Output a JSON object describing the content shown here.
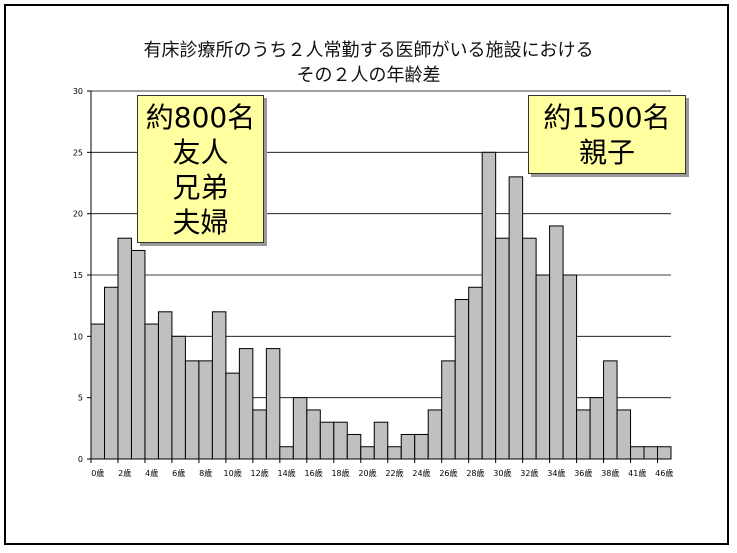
{
  "chart_data": {
    "type": "bar",
    "title": [
      "有床診療所のうち２人常勤する医師がいる施設における",
      "その２人の年齢差"
    ],
    "categories": [
      "0歳",
      "1歳",
      "2歳",
      "3歳",
      "4歳",
      "5歳",
      "6歳",
      "7歳",
      "8歳",
      "9歳",
      "10歳",
      "11歳",
      "12歳",
      "13歳",
      "14歳",
      "15歳",
      "16歳",
      "17歳",
      "18歳",
      "19歳",
      "20歳",
      "21歳",
      "22歳",
      "23歳",
      "24歳",
      "25歳",
      "26歳",
      "27歳",
      "28歳",
      "29歳",
      "30歳",
      "31歳",
      "32歳",
      "33歳",
      "34歳",
      "35歳",
      "36歳",
      "37歳",
      "38歳",
      "39歳",
      "41歳",
      "45歳",
      "46歳"
    ],
    "x_tick_labels": [
      "0歳",
      "2歳",
      "4歳",
      "6歳",
      "8歳",
      "10歳",
      "12歳",
      "14歳",
      "16歳",
      "18歳",
      "20歳",
      "22歳",
      "24歳",
      "26歳",
      "28歳",
      "30歳",
      "32歳",
      "34歳",
      "36歳",
      "38歳",
      "41歳",
      "46歳"
    ],
    "values": [
      11,
      14,
      18,
      17,
      11,
      12,
      10,
      8,
      8,
      12,
      7,
      9,
      4,
      9,
      1,
      5,
      4,
      3,
      3,
      2,
      1,
      3,
      1,
      2,
      2,
      4,
      8,
      13,
      14,
      25,
      18,
      23,
      18,
      15,
      19,
      15,
      4,
      5,
      8,
      4,
      1,
      1,
      1
    ],
    "ylim": [
      0,
      30
    ],
    "y_ticks": [
      0,
      5,
      10,
      15,
      20,
      25,
      30
    ],
    "grid": true,
    "bar_color": "#c0c0c0"
  },
  "annotations": {
    "left": [
      "約800名",
      "友人",
      "兄弟",
      "夫婦"
    ],
    "right": [
      "約1500名",
      "親子"
    ]
  }
}
